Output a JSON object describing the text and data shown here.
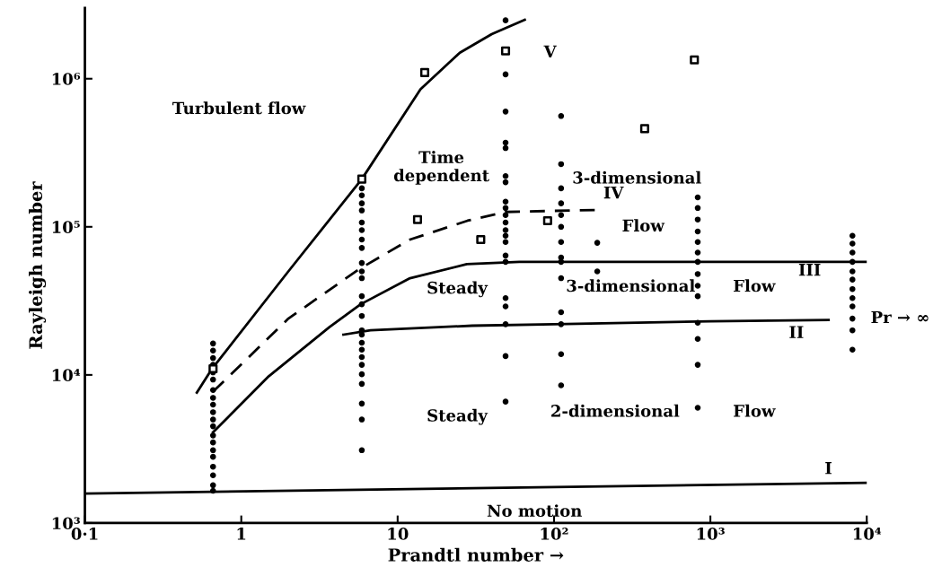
{
  "chart_data": {
    "type": "line",
    "xlabel": "Prandtl number →",
    "ylabel": "Rayleigh number",
    "log": "xy",
    "xlim": [
      0.1,
      10000
    ],
    "ylim": [
      1000,
      3000000
    ],
    "xticks": [
      {
        "value": 0.1,
        "label": "0·1"
      },
      1,
      10,
      {
        "value": 100,
        "label": "10²"
      },
      {
        "value": 1000,
        "label": "10³"
      },
      {
        "value": 10000,
        "label": "10⁴"
      }
    ],
    "yticks": [
      {
        "value": 1000,
        "label": "10³"
      },
      {
        "value": 10000,
        "label": "10⁴"
      },
      {
        "value": 100000,
        "label": "10⁵"
      },
      {
        "value": 1000000,
        "label": "10⁶"
      }
    ],
    "grid": false,
    "series": [
      {
        "line_style": "solid",
        "color": "#000000",
        "x": [
          0.52,
          0.65,
          2,
          5.9,
          14,
          25,
          40,
          65
        ],
        "values": [
          7600,
          11000,
          50000,
          210000,
          850000,
          1500000,
          2000000,
          2500000
        ]
      },
      {
        "line_style": "dashed",
        "color": "#000000",
        "x": [
          0.66,
          2,
          5.7,
          12,
          28,
          49,
          184
        ],
        "values": [
          7700,
          24000,
          52000,
          82000,
          110000,
          126000,
          130000
        ]
      },
      {
        "line_style": "solid",
        "color": "#000000",
        "x": [
          0.66,
          1.5,
          3.66,
          5.8,
          12,
          27.7,
          60,
          10000
        ],
        "values": [
          4100,
          9800,
          21000,
          30000,
          45000,
          56000,
          58000,
          58000
        ]
      },
      {
        "line_style": "solid",
        "color": "#000000",
        "x": [
          4.5,
          6.7,
          30,
          100,
          1000,
          5700
        ],
        "values": [
          18700,
          20000,
          21500,
          22000,
          23000,
          23500
        ]
      },
      {
        "line_style": "solid",
        "color": "#000000",
        "x": [
          0.1,
          10000
        ],
        "values": [
          1580,
          1870
        ]
      },
      {
        "type": "scatter",
        "marker": "circle",
        "color": "#000000",
        "x": [
          0.66,
          0.66,
          0.66,
          0.66,
          0.66,
          0.66,
          0.66,
          0.66,
          0.66,
          0.66,
          0.66,
          0.66,
          0.66,
          0.66,
          0.66,
          0.66,
          0.66,
          0.66,
          0.66,
          0.66,
          5.9,
          5.9,
          5.9,
          5.9,
          5.9,
          5.9,
          5.9,
          5.9,
          5.9,
          5.9,
          5.9,
          5.9,
          5.9,
          5.9,
          5.9,
          5.9,
          5.9,
          5.9,
          5.9,
          5.9,
          5.9,
          5.9,
          5.9,
          5.9,
          5.9,
          49,
          49,
          49,
          49,
          49,
          49,
          49,
          49,
          49,
          49,
          49,
          49,
          49,
          49,
          49,
          49,
          49,
          49,
          49,
          49,
          49,
          111,
          111,
          111,
          111,
          111,
          111,
          111,
          111,
          111,
          111,
          111,
          111,
          111,
          111,
          189,
          189,
          830,
          830,
          830,
          830,
          830,
          830,
          830,
          830,
          830,
          830,
          830,
          830,
          830,
          830,
          8100,
          8100,
          8100,
          8100,
          8100,
          8100,
          8100,
          8100,
          8100,
          8100,
          8100,
          8100
        ],
        "values": [
          16300,
          14600,
          13000,
          11700,
          10400,
          9300,
          7900,
          7000,
          6300,
          5600,
          5000,
          4500,
          3900,
          3500,
          3100,
          2800,
          2400,
          2100,
          1800,
          1650,
          182000,
          163000,
          144000,
          129000,
          107000,
          95000,
          82000,
          72000,
          57000,
          50000,
          45000,
          34000,
          30000,
          25000,
          20000,
          18700,
          16500,
          14800,
          13200,
          11700,
          10100,
          8700,
          6400,
          5000,
          3100,
          2480000,
          1070000,
          600000,
          370000,
          340000,
          220000,
          200000,
          148000,
          134000,
          120000,
          107000,
          95000,
          87000,
          79000,
          64000,
          58000,
          33000,
          29000,
          22000,
          13400,
          6600,
          560000,
          265000,
          182000,
          144000,
          120000,
          100000,
          79000,
          62000,
          58000,
          45000,
          26500,
          22000,
          13800,
          8500,
          78000,
          50000,
          158000,
          134000,
          112000,
          93000,
          79000,
          67000,
          58000,
          48000,
          40000,
          34000,
          22500,
          17500,
          11700,
          6000,
          87000,
          77000,
          67000,
          58000,
          50000,
          44000,
          38000,
          33000,
          29000,
          24000,
          20000,
          14800
        ]
      },
      {
        "type": "scatter",
        "marker": "square",
        "color": "#000000",
        "x": [
          0.66,
          5.9,
          14.9,
          13.4,
          34,
          49,
          91,
          380,
          790
        ],
        "values": [
          11000,
          210000,
          1100000,
          112000,
          82000,
          1540000,
          110000,
          460000,
          1340000
        ]
      }
    ],
    "annotations": [
      "Turbulent flow",
      "Time\ndependent",
      "3-dimensional",
      "Flow",
      "Steady",
      "3-dimensional",
      "Flow",
      "Steady",
      "2-dimensional",
      "Flow",
      "No motion",
      "V",
      "IV",
      "III",
      "II",
      "I",
      "Pr → ∞"
    ]
  }
}
